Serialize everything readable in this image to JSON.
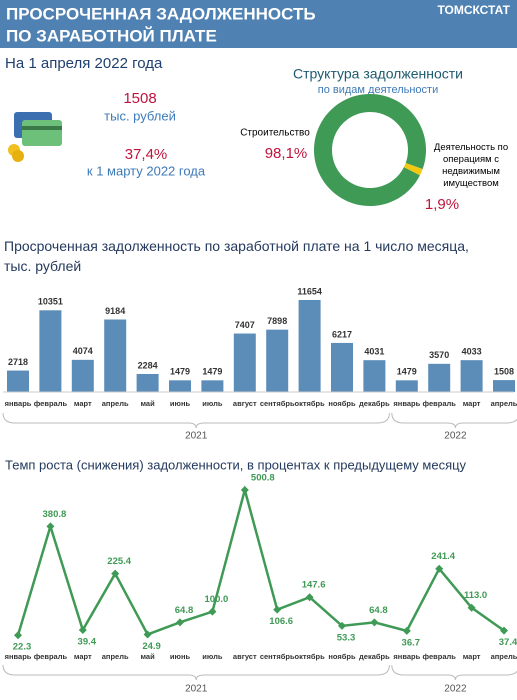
{
  "header": {
    "title_line1": "ПРОСРОЧЕННАЯ ЗАДОЛЖЕННОСТЬ",
    "title_line2": "ПО ЗАРАБОТНОЙ ПЛАТЕ",
    "source": "ТОМСКСТАТ"
  },
  "summary": {
    "date": "На 1 апреля  2022 года",
    "amount": "1508",
    "amount_unit": "тыс. рублей",
    "change": "37,4%",
    "change_note": "к 1 марту 2022 года"
  },
  "chart_data": [
    {
      "type": "pie",
      "title": "Структура задолженности",
      "subtitle": "по видам деятельности",
      "categories": [
        "Строительство",
        "Деятельность по операциям с недвижимым имуществом"
      ],
      "values": [
        98.1,
        1.9
      ],
      "value_labels": [
        "98,1%",
        "1,9%"
      ],
      "colors": [
        "#3f9a55",
        "#f2c811"
      ]
    },
    {
      "type": "bar",
      "title": "Просроченная задолженность по заработной плате на 1 число месяца, тыс. рублей",
      "color": "#5b8db8",
      "category_groups": [
        {
          "label": "2021",
          "categories": [
            "январь",
            "февраль",
            "март",
            "апрель",
            "май",
            "июнь",
            "июль",
            "август",
            "сентябрь",
            "октябрь",
            "ноябрь",
            "декабрь"
          ]
        },
        {
          "label": "2022",
          "categories": [
            "январь",
            "февраль",
            "март",
            "апрель"
          ]
        }
      ],
      "values": [
        2718,
        10351,
        4074,
        9184,
        2284,
        1479,
        1479,
        7407,
        7898,
        11654,
        6217,
        4031,
        1479,
        3570,
        4033,
        1508
      ]
    },
    {
      "type": "line",
      "title": "Темп роста (снижения) задолженности, в процентах к предыдущему месяцу",
      "color": "#3f9a55",
      "category_groups": [
        {
          "label": "2021",
          "categories": [
            "январь",
            "февраль",
            "март",
            "апрель",
            "май",
            "июнь",
            "июль",
            "август",
            "сентябрь",
            "октябрь",
            "ноябрь",
            "декабрь"
          ]
        },
        {
          "label": "2022",
          "categories": [
            "январь",
            "февраль",
            "март",
            "апрель"
          ]
        }
      ],
      "values": [
        22.3,
        380.8,
        39.4,
        225.4,
        24.9,
        64.8,
        100.0,
        500.8,
        106.6,
        147.6,
        53.3,
        64.8,
        36.7,
        241.4,
        113.0,
        37.4
      ],
      "value_labels": [
        "22.3",
        "380.8",
        "39.4",
        "225.4",
        "24.9",
        "64.8",
        "100.0",
        "500.8",
        "106.6",
        "147.6",
        "53.3",
        "64.8",
        "36.7",
        "241.4",
        "113.0",
        "37.4"
      ]
    }
  ]
}
